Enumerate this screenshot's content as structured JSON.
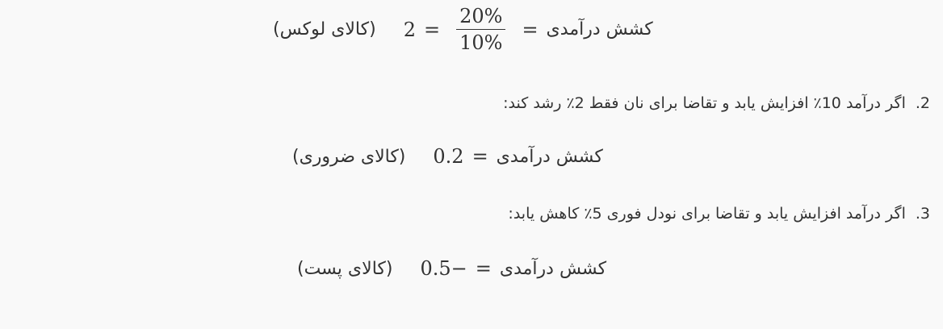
{
  "equations": [
    {
      "label": "(کالای لوکس)",
      "value": "2",
      "numerator": "20%",
      "denominator": "10%",
      "lhs": "کشش درآمدی"
    },
    {
      "label": "(کالای ضروری)",
      "value": "0.2",
      "lhs": "کشش درآمدی"
    },
    {
      "label": "(کالای پست)",
      "value": "0.5−",
      "lhs": "کشش درآمدی"
    }
  ],
  "items": [
    {
      "number": "2.",
      "text": "اگر درآمد 10٪ افزایش یابد و تقاضا برای نان فقط 2٪ رشد کند:"
    },
    {
      "number": "3.",
      "text": "اگر درآمد افزایش یابد و تقاضا برای نودل فوری 5٪ کاهش یابد:"
    }
  ]
}
